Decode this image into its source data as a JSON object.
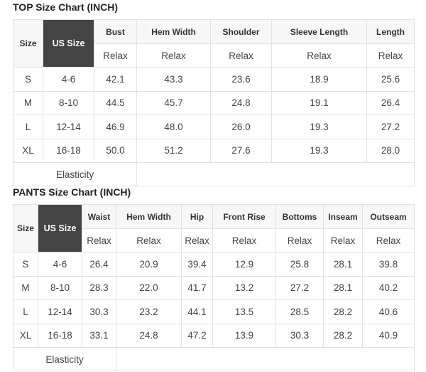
{
  "top": {
    "title": "TOP Size Chart (INCH)",
    "headers": [
      "Size",
      "US Size",
      "Bust",
      "Hem Width",
      "Shoulder",
      "Sleeve Length",
      "Length"
    ],
    "sub": [
      "Relax",
      "Relax",
      "Relax",
      "Relax",
      "Relax"
    ],
    "rows": [
      [
        "S",
        "4-6",
        "42.1",
        "43.3",
        "23.6",
        "18.9",
        "25.6"
      ],
      [
        "M",
        "8-10",
        "44.5",
        "45.7",
        "24.8",
        "19.1",
        "26.4"
      ],
      [
        "L",
        "12-14",
        "46.9",
        "48.0",
        "26.0",
        "19.3",
        "27.2"
      ],
      [
        "XL",
        "16-18",
        "50.0",
        "51.2",
        "27.6",
        "19.3",
        "28.0"
      ]
    ],
    "elasticity": "Elasticity"
  },
  "pants": {
    "title": "PANTS Size Chart (INCH)",
    "headers": [
      "Size",
      "US Size",
      "Waist",
      "Hem Width",
      "Hip",
      "Front Rise",
      "Bottoms",
      "Inseam",
      "Outseam"
    ],
    "sub": [
      "Relax",
      "Relax",
      "Relax",
      "Relax",
      "Relax",
      "Relax",
      "Relax"
    ],
    "rows": [
      [
        "S",
        "4-6",
        "26.4",
        "20.9",
        "39.4",
        "12.9",
        "25.8",
        "28.1",
        "39.8"
      ],
      [
        "M",
        "8-10",
        "28.3",
        "22.0",
        "41.7",
        "13.2",
        "27.2",
        "28.1",
        "40.2"
      ],
      [
        "L",
        "12-14",
        "30.3",
        "23.2",
        "44.1",
        "13.5",
        "28.5",
        "28.2",
        "40.6"
      ],
      [
        "XL",
        "16-18",
        "33.1",
        "24.8",
        "47.2",
        "13.9",
        "30.3",
        "28.2",
        "40.9"
      ]
    ],
    "elasticity": "Elasticity"
  }
}
